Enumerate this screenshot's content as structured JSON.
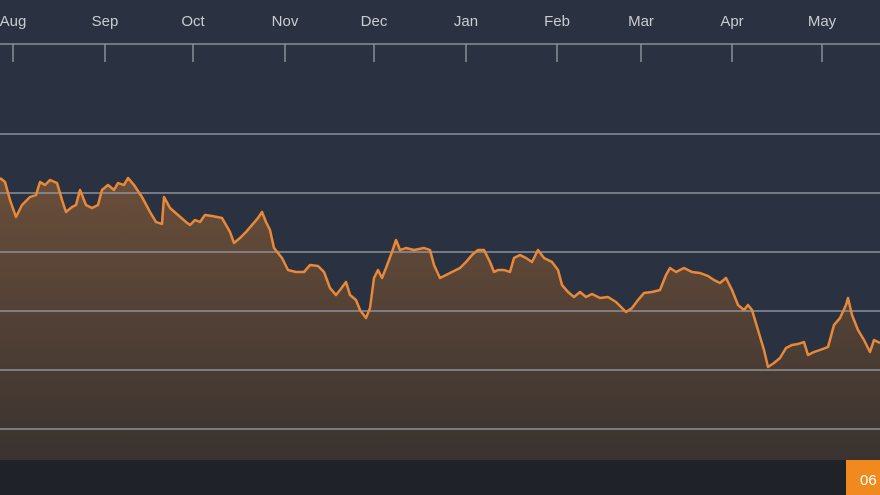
{
  "chart_data": {
    "type": "area",
    "color": "#e8893a",
    "grid": true,
    "xlim": [
      0,
      880
    ],
    "ylim": [
      0,
      416
    ],
    "xticks": [
      {
        "value": 13,
        "label": "Aug"
      },
      {
        "value": 105,
        "label": "Sep"
      },
      {
        "value": 193,
        "label": "Oct"
      },
      {
        "value": 285,
        "label": "Nov"
      },
      {
        "value": 374,
        "label": "Dec"
      },
      {
        "value": 466,
        "label": "Jan"
      },
      {
        "value": 557,
        "label": "Feb"
      },
      {
        "value": 641,
        "label": "Mar"
      },
      {
        "value": 732,
        "label": "Apr"
      },
      {
        "value": 822,
        "label": "May"
      }
    ],
    "gridlines": [
      31,
      90,
      149,
      208,
      267,
      326
    ],
    "current_label": "06",
    "x": [
      0,
      5,
      10,
      16,
      22,
      30,
      36,
      40,
      45,
      50,
      57,
      62,
      66,
      72,
      76,
      80,
      86,
      92,
      98,
      102,
      108,
      114,
      118,
      124,
      128,
      134,
      142,
      150,
      156,
      162,
      164,
      170,
      178,
      186,
      190,
      195,
      200,
      205,
      212,
      222,
      230,
      234,
      240,
      246,
      252,
      258,
      262,
      266,
      270,
      274,
      282,
      288,
      296,
      304,
      310,
      318,
      324,
      330,
      336,
      340,
      346,
      350,
      356,
      360,
      366,
      370,
      374,
      378,
      382,
      386,
      392,
      396,
      400,
      406,
      414,
      424,
      430,
      434,
      440,
      446,
      452,
      460,
      466,
      472,
      478,
      484,
      490,
      494,
      498,
      504,
      510,
      514,
      520,
      526,
      532,
      538,
      544,
      552,
      558,
      562,
      568,
      574,
      580,
      586,
      592,
      600,
      608,
      616,
      620,
      626,
      632,
      638,
      644,
      652,
      660,
      666,
      670,
      676,
      684,
      692,
      700,
      708,
      714,
      720,
      726,
      732,
      738,
      744,
      748,
      752,
      758,
      764,
      768,
      774,
      780,
      786,
      792,
      798,
      804,
      808,
      814,
      820,
      828,
      834,
      840,
      846,
      848,
      852,
      858,
      864,
      870,
      874,
      880
    ],
    "values": [
      282,
      278,
      260,
      243,
      255,
      263,
      265,
      278,
      275,
      280,
      277,
      260,
      248,
      253,
      255,
      270,
      255,
      252,
      255,
      270,
      275,
      270,
      277,
      275,
      282,
      275,
      263,
      248,
      238,
      236,
      263,
      252,
      245,
      238,
      235,
      240,
      238,
      245,
      244,
      242,
      228,
      217,
      222,
      228,
      235,
      242,
      248,
      238,
      230,
      212,
      202,
      190,
      188,
      188,
      195,
      194,
      188,
      172,
      165,
      170,
      178,
      165,
      160,
      150,
      142,
      152,
      182,
      190,
      182,
      192,
      208,
      220,
      210,
      212,
      210,
      212,
      210,
      195,
      182,
      185,
      188,
      192,
      198,
      205,
      210,
      210,
      198,
      188,
      190,
      190,
      188,
      202,
      205,
      202,
      198,
      210,
      202,
      198,
      190,
      175,
      168,
      163,
      168,
      163,
      166,
      162,
      163,
      158,
      154,
      148,
      152,
      160,
      167,
      168,
      170,
      185,
      192,
      188,
      192,
      188,
      187,
      184,
      180,
      177,
      182,
      170,
      155,
      150,
      155,
      150,
      130,
      110,
      93,
      97,
      102,
      112,
      115,
      116,
      118,
      105,
      108,
      110,
      113,
      135,
      142,
      155,
      162,
      145,
      130,
      120,
      108,
      120,
      117
    ]
  }
}
